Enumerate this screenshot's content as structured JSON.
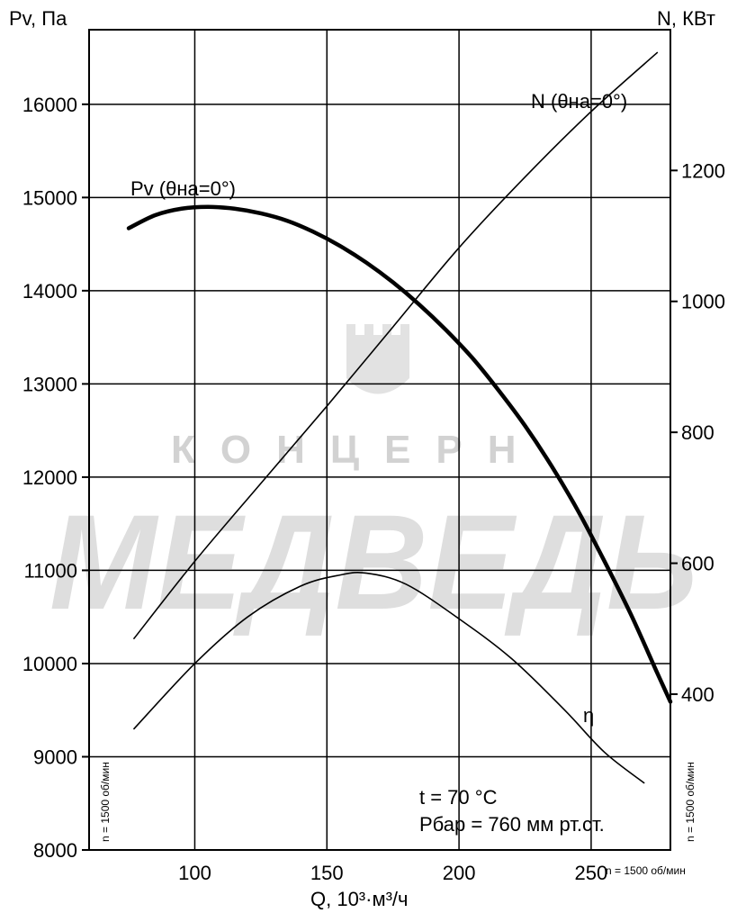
{
  "chart_data": {
    "type": "line",
    "y_left_label": "Pv, Па",
    "y_right_label": "N, КВт",
    "x_label": "Q, 10³·м³/ч",
    "xlim": [
      60,
      280
    ],
    "ylim_left": [
      8000,
      16800
    ],
    "ylim_right": [
      162,
      1415
    ],
    "x_ticks": [
      100,
      150,
      200,
      250
    ],
    "y_left_ticks": [
      8000,
      9000,
      10000,
      11000,
      12000,
      13000,
      14000,
      15000,
      16000
    ],
    "y_right_ticks": [
      400,
      600,
      800,
      1000,
      1200
    ],
    "grid": true,
    "series": [
      {
        "name": "Pv (θна=0°)",
        "axis": "left",
        "style": "bold",
        "x": [
          75,
          85,
          95,
          105,
          115,
          125,
          135,
          145,
          155,
          165,
          175,
          185,
          195,
          205,
          215,
          225,
          235,
          245,
          255,
          265,
          275,
          280
        ],
        "y": [
          14670,
          14810,
          14880,
          14900,
          14880,
          14830,
          14750,
          14630,
          14480,
          14300,
          14090,
          13850,
          13580,
          13280,
          12930,
          12550,
          12120,
          11640,
          11100,
          10530,
          9900,
          9590
        ]
      },
      {
        "name": "N (θна=0°)",
        "axis": "right",
        "style": "thin",
        "x": [
          77,
          100,
          125,
          150,
          175,
          200,
          225,
          250,
          275
        ],
        "y": [
          485,
          603,
          722,
          840,
          961,
          1082,
          1190,
          1290,
          1380
        ]
      },
      {
        "name": "η",
        "axis": "left",
        "style": "thin",
        "x": [
          77,
          100,
          120,
          140,
          155,
          165,
          180,
          200,
          220,
          240,
          255,
          270
        ],
        "y": [
          9300,
          10000,
          10500,
          10830,
          10950,
          10970,
          10850,
          10480,
          10050,
          9500,
          9050,
          8720
        ]
      }
    ],
    "annotations": [
      "t = 70 °C",
      "Рбар = 760 мм рт.ст."
    ]
  },
  "rpm_note": "n = 1500 об/мин",
  "watermark": {
    "line1": "КОНЦЕРН",
    "line2": "МЕДВЕДЬ"
  }
}
